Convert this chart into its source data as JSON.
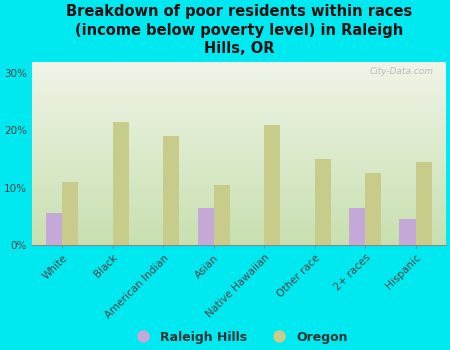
{
  "title": "Breakdown of poor residents within races\n(income below poverty level) in Raleigh\nHills, OR",
  "categories": [
    "White",
    "Black",
    "American Indian",
    "Asian",
    "Native Hawaiian",
    "Other race",
    "2+ races",
    "Hispanic"
  ],
  "raleigh_hills": [
    5.5,
    0,
    0,
    6.5,
    0,
    0,
    6.5,
    4.5
  ],
  "oregon": [
    11.0,
    21.5,
    19.0,
    10.5,
    21.0,
    15.0,
    12.5,
    14.5
  ],
  "raleigh_color": "#c4a8d8",
  "oregon_color": "#c8cc8a",
  "background_color": "#00e8f0",
  "plot_bg_top": "#f0f4e8",
  "plot_bg_bottom": "#d8e8c0",
  "ylim": [
    0,
    32
  ],
  "yticks": [
    0,
    10,
    20,
    30
  ],
  "ytick_labels": [
    "0%",
    "10%",
    "20%",
    "30%"
  ],
  "bar_width": 0.32,
  "legend_raleigh": "Raleigh Hills",
  "legend_oregon": "Oregon",
  "watermark": "City-Data.com",
  "title_fontsize": 10.5,
  "tick_fontsize": 7.5
}
